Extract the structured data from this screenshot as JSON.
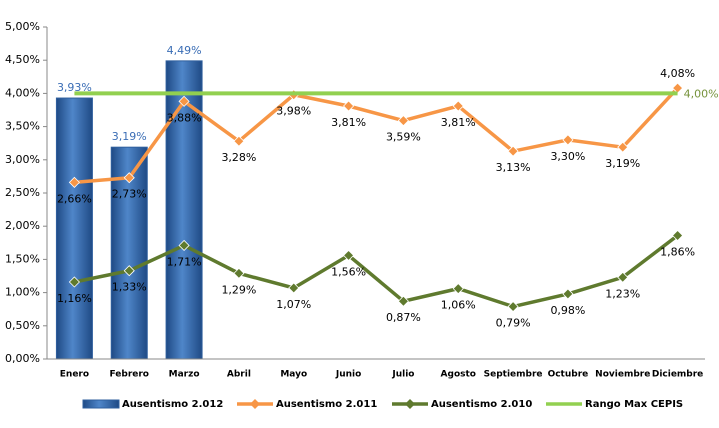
{
  "chart_data": {
    "type": "bar",
    "categories": [
      "Enero",
      "Febrero",
      "Marzo",
      "Abril",
      "Mayo",
      "Junio",
      "Julio",
      "Agosto",
      "Septiembre",
      "Octubre",
      "Noviembre",
      "Diciembre"
    ],
    "ylim": [
      0,
      5
    ],
    "yticks": [
      {
        "value": 0,
        "label": "0,00%"
      },
      {
        "value": 0.5,
        "label": "0,50%"
      },
      {
        "value": 1,
        "label": "1,00%"
      },
      {
        "value": 1.5,
        "label": "1,50%"
      },
      {
        "value": 2,
        "label": "2,00%"
      },
      {
        "value": 2.5,
        "label": "2,50%"
      },
      {
        "value": 3,
        "label": "3,00%"
      },
      {
        "value": 3.5,
        "label": "3,50%"
      },
      {
        "value": 4,
        "label": "4,00%"
      },
      {
        "value": 4.5,
        "label": "4,50%"
      },
      {
        "value": 5,
        "label": "5,00%"
      }
    ],
    "legend": "bottom",
    "series": [
      {
        "name": "Ausentismo 2.012",
        "type": "bar",
        "color": "#2f5f9e",
        "values": [
          3.93,
          3.19,
          4.49,
          null,
          null,
          null,
          null,
          null,
          null,
          null,
          null,
          null
        ],
        "value_labels": [
          "3,93%",
          "3,19%",
          "4,49%",
          null,
          null,
          null,
          null,
          null,
          null,
          null,
          null,
          null
        ]
      },
      {
        "name": "Ausentismo 2.011",
        "type": "line",
        "color": "#f79646",
        "values": [
          2.66,
          2.73,
          3.88,
          3.28,
          3.98,
          3.81,
          3.59,
          3.81,
          3.13,
          3.3,
          3.19,
          4.08
        ],
        "value_labels": [
          "2,66%",
          "2,73%",
          "3,88%",
          "3,28%",
          "3,98%",
          "3,81%",
          "3,59%",
          "3,81%",
          "3,13%",
          "3,30%",
          "3,19%",
          "4,08%"
        ]
      },
      {
        "name": "Ausentismo 2.010",
        "type": "line",
        "color": "#5f7a2e",
        "values": [
          1.16,
          1.33,
          1.71,
          1.29,
          1.07,
          1.56,
          0.87,
          1.06,
          0.79,
          0.98,
          1.23,
          1.86
        ],
        "value_labels": [
          "1,16%",
          "1,33%",
          "1,71%",
          "1,29%",
          "1,07%",
          "1,56%",
          "0,87%",
          "1,06%",
          "0,79%",
          "0,98%",
          "1,23%",
          "1,86%"
        ]
      },
      {
        "name": "Rango Max CEPIS",
        "type": "line",
        "color": "#92d050",
        "values": [
          4,
          4,
          4,
          4,
          4,
          4,
          4,
          4,
          4,
          4,
          4,
          4
        ],
        "value_labels": [
          null,
          null,
          null,
          null,
          null,
          null,
          null,
          null,
          null,
          null,
          null,
          "4,00%"
        ]
      }
    ]
  }
}
